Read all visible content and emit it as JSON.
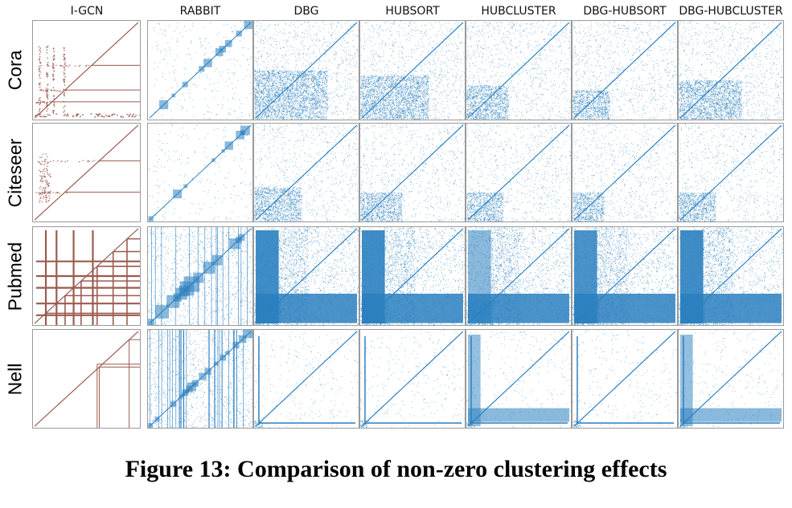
{
  "figure": {
    "columns": [
      "I-GCN",
      "RABBIT",
      "DBG",
      "HUBSORT",
      "HUBCLUSTER",
      "DBG-HUBSORT",
      "DBG-HUBCLUSTER"
    ],
    "rows": [
      "Cora",
      "Citeseer",
      "Pubmed",
      "Nell"
    ],
    "caption": "Figure 13: Comparison of non-zero clustering effects",
    "colors": {
      "igcn": "#9b5a4e",
      "others": "#2a7fc0",
      "frame": "#9a9a9a"
    }
  }
}
